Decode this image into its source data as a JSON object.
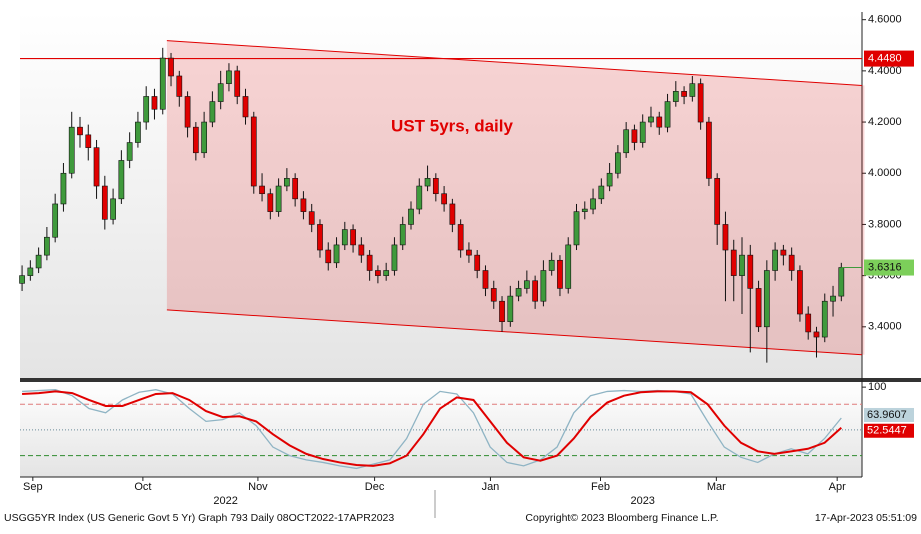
{
  "chart_data": [
    {
      "type": "candlestick",
      "title": "UST 5yrs, daily",
      "xlim": [
        -0.25,
        101.5
      ],
      "ylim": [
        3.2,
        4.63
      ],
      "yticks": [
        {
          "value": 3.4,
          "label": "3.4000"
        },
        {
          "value": 3.6,
          "label": "3.6000"
        },
        {
          "value": 3.8,
          "label": "3.8000"
        },
        {
          "value": 4.0,
          "label": "4.0000"
        },
        {
          "value": 4.2,
          "label": "4.2000"
        },
        {
          "value": 4.4,
          "label": "4.4000"
        },
        {
          "value": 4.6,
          "label": "4.6000"
        }
      ],
      "xticks": [
        {
          "value": 1.3,
          "label": "Sep"
        },
        {
          "value": 14.6,
          "label": "Oct"
        },
        {
          "value": 28.5,
          "label": "Nov"
        },
        {
          "value": 42.6,
          "label": "Dec"
        },
        {
          "value": 56.6,
          "label": "Jan"
        },
        {
          "value": 69.9,
          "label": "Feb"
        },
        {
          "value": 83.9,
          "label": "Mar"
        },
        {
          "value": 98.5,
          "label": "Apr"
        }
      ],
      "year_labels": [
        {
          "value": 24.6,
          "label": "2022"
        },
        {
          "value": 75,
          "label": "2023"
        }
      ],
      "up_color": "#3f9a3c",
      "down_color": "#e00000",
      "hline": {
        "value": 4.448,
        "label": "4.4480",
        "color": "#e00000"
      },
      "channel": {
        "x": [
          17.5,
          101.8
        ],
        "upper": [
          4.518,
          4.343
        ],
        "lower": [
          3.466,
          3.291
        ],
        "color": "#e00000"
      },
      "candles": [
        [
          3.57,
          3.64,
          3.54,
          3.6
        ],
        [
          3.6,
          3.66,
          3.58,
          3.63
        ],
        [
          3.63,
          3.71,
          3.61,
          3.68
        ],
        [
          3.68,
          3.79,
          3.66,
          3.75
        ],
        [
          3.75,
          3.92,
          3.73,
          3.88
        ],
        [
          3.88,
          4.04,
          3.85,
          4.0
        ],
        [
          4.0,
          4.24,
          3.98,
          4.18
        ],
        [
          4.18,
          4.22,
          4.1,
          4.15
        ],
        [
          4.15,
          4.19,
          4.05,
          4.1
        ],
        [
          4.1,
          4.13,
          3.9,
          3.95
        ],
        [
          3.95,
          3.99,
          3.78,
          3.82
        ],
        [
          3.82,
          3.94,
          3.8,
          3.9
        ],
        [
          3.9,
          4.09,
          3.88,
          4.05
        ],
        [
          4.05,
          4.16,
          4.02,
          4.12
        ],
        [
          4.12,
          4.24,
          4.1,
          4.2
        ],
        [
          4.2,
          4.34,
          4.17,
          4.3
        ],
        [
          4.3,
          4.33,
          4.21,
          4.25
        ],
        [
          4.25,
          4.49,
          4.23,
          4.45
        ],
        [
          4.45,
          4.47,
          4.34,
          4.38
        ],
        [
          4.38,
          4.4,
          4.26,
          4.3
        ],
        [
          4.3,
          4.32,
          4.14,
          4.18
        ],
        [
          4.18,
          4.2,
          4.05,
          4.08
        ],
        [
          4.08,
          4.24,
          4.06,
          4.2
        ],
        [
          4.2,
          4.32,
          4.18,
          4.28
        ],
        [
          4.28,
          4.4,
          4.25,
          4.35
        ],
        [
          4.35,
          4.43,
          4.32,
          4.4
        ],
        [
          4.4,
          4.42,
          4.27,
          4.3
        ],
        [
          4.3,
          4.33,
          4.19,
          4.22
        ],
        [
          4.22,
          4.24,
          3.92,
          3.95
        ],
        [
          3.95,
          4.0,
          3.89,
          3.92
        ],
        [
          3.92,
          3.94,
          3.82,
          3.85
        ],
        [
          3.85,
          3.98,
          3.83,
          3.95
        ],
        [
          3.95,
          4.02,
          3.93,
          3.98
        ],
        [
          3.98,
          4.0,
          3.87,
          3.9
        ],
        [
          3.9,
          3.93,
          3.82,
          3.85
        ],
        [
          3.85,
          3.88,
          3.77,
          3.8
        ],
        [
          3.8,
          3.82,
          3.67,
          3.7
        ],
        [
          3.7,
          3.73,
          3.62,
          3.65
        ],
        [
          3.65,
          3.75,
          3.63,
          3.72
        ],
        [
          3.72,
          3.81,
          3.7,
          3.78
        ],
        [
          3.78,
          3.8,
          3.69,
          3.72
        ],
        [
          3.72,
          3.75,
          3.65,
          3.68
        ],
        [
          3.68,
          3.7,
          3.58,
          3.62
        ],
        [
          3.62,
          3.64,
          3.57,
          3.6
        ],
        [
          3.6,
          3.65,
          3.58,
          3.62
        ],
        [
          3.62,
          3.75,
          3.6,
          3.72
        ],
        [
          3.72,
          3.83,
          3.7,
          3.8
        ],
        [
          3.8,
          3.89,
          3.78,
          3.86
        ],
        [
          3.86,
          3.98,
          3.84,
          3.95
        ],
        [
          3.95,
          4.03,
          3.93,
          3.98
        ],
        [
          3.98,
          4.0,
          3.89,
          3.92
        ],
        [
          3.92,
          3.95,
          3.85,
          3.88
        ],
        [
          3.88,
          3.9,
          3.77,
          3.8
        ],
        [
          3.8,
          3.82,
          3.67,
          3.7
        ],
        [
          3.7,
          3.73,
          3.65,
          3.68
        ],
        [
          3.68,
          3.7,
          3.59,
          3.62
        ],
        [
          3.62,
          3.64,
          3.52,
          3.55
        ],
        [
          3.55,
          3.58,
          3.47,
          3.5
        ],
        [
          3.5,
          3.52,
          3.38,
          3.42
        ],
        [
          3.42,
          3.56,
          3.4,
          3.52
        ],
        [
          3.52,
          3.58,
          3.5,
          3.55
        ],
        [
          3.55,
          3.62,
          3.53,
          3.58
        ],
        [
          3.58,
          3.6,
          3.47,
          3.5
        ],
        [
          3.5,
          3.66,
          3.48,
          3.62
        ],
        [
          3.62,
          3.69,
          3.6,
          3.66
        ],
        [
          3.66,
          3.68,
          3.52,
          3.55
        ],
        [
          3.55,
          3.75,
          3.53,
          3.72
        ],
        [
          3.72,
          3.88,
          3.7,
          3.85
        ],
        [
          3.85,
          3.89,
          3.82,
          3.86
        ],
        [
          3.86,
          3.94,
          3.84,
          3.9
        ],
        [
          3.9,
          3.98,
          3.88,
          3.95
        ],
        [
          3.95,
          4.04,
          3.93,
          4.0
        ],
        [
          4.0,
          4.11,
          3.98,
          4.08
        ],
        [
          4.08,
          4.2,
          4.06,
          4.17
        ],
        [
          4.17,
          4.19,
          4.09,
          4.12
        ],
        [
          4.12,
          4.23,
          4.1,
          4.2
        ],
        [
          4.2,
          4.26,
          4.18,
          4.22
        ],
        [
          4.22,
          4.24,
          4.15,
          4.18
        ],
        [
          4.18,
          4.31,
          4.16,
          4.28
        ],
        [
          4.28,
          4.36,
          4.26,
          4.32
        ],
        [
          4.32,
          4.34,
          4.27,
          4.3
        ],
        [
          4.3,
          4.38,
          4.28,
          4.35
        ],
        [
          4.35,
          4.37,
          4.17,
          4.2
        ],
        [
          4.2,
          4.22,
          3.95,
          3.98
        ],
        [
          3.98,
          4.0,
          3.72,
          3.8
        ],
        [
          3.8,
          3.85,
          3.5,
          3.7
        ],
        [
          3.7,
          3.74,
          3.5,
          3.6
        ],
        [
          3.6,
          3.75,
          3.45,
          3.68
        ],
        [
          3.68,
          3.72,
          3.3,
          3.55
        ],
        [
          3.55,
          3.58,
          3.38,
          3.4
        ],
        [
          3.4,
          3.66,
          3.26,
          3.62
        ],
        [
          3.62,
          3.73,
          3.58,
          3.7
        ],
        [
          3.7,
          3.72,
          3.64,
          3.68
        ],
        [
          3.68,
          3.71,
          3.58,
          3.62
        ],
        [
          3.62,
          3.64,
          3.42,
          3.45
        ],
        [
          3.45,
          3.48,
          3.35,
          3.38
        ],
        [
          3.38,
          3.4,
          3.28,
          3.36
        ],
        [
          3.36,
          3.53,
          3.34,
          3.5
        ],
        [
          3.5,
          3.56,
          3.44,
          3.52
        ],
        [
          3.52,
          3.65,
          3.5,
          3.6316
        ]
      ]
    },
    {
      "type": "line",
      "ylim": [
        -5,
        106
      ],
      "yticks": [
        100
      ],
      "levels": [
        {
          "value": 80,
          "color": "#e07a7a"
        },
        {
          "value": 50,
          "color": "#6a8a99"
        },
        {
          "value": 20,
          "color": "#2e8b2e"
        }
      ],
      "series": [
        {
          "color": "#8fb4c4",
          "values": [
            95,
            96,
            97,
            90,
            75,
            70,
            85,
            94,
            97,
            92,
            75,
            60,
            62,
            70,
            55,
            30,
            20,
            15,
            12,
            8,
            5,
            10,
            15,
            40,
            80,
            95,
            92,
            70,
            30,
            12,
            8,
            15,
            30,
            70,
            90,
            95,
            96,
            95,
            96,
            95,
            92,
            60,
            30,
            18,
            12,
            22,
            28,
            22,
            40,
            63.9607
          ]
        },
        {
          "color": "#e00000",
          "values": [
            92,
            93,
            95,
            93,
            85,
            78,
            78,
            85,
            92,
            93,
            85,
            72,
            65,
            66,
            60,
            45,
            32,
            22,
            16,
            12,
            9,
            8,
            11,
            20,
            45,
            75,
            88,
            85,
            60,
            35,
            18,
            14,
            20,
            40,
            65,
            82,
            90,
            94,
            95,
            95,
            94,
            80,
            55,
            35,
            25,
            22,
            25,
            28,
            35,
            52.5447
          ]
        }
      ]
    }
  ],
  "footer": {
    "left": "USGG5YR Index (US Generic Govt 5 Yr) Graph 793  Daily 08OCT2022-17APR2023",
    "center": "Copyright© 2023 Bloomberg Finance L.P.",
    "right": "17-Apr-2023 05:51:09"
  }
}
